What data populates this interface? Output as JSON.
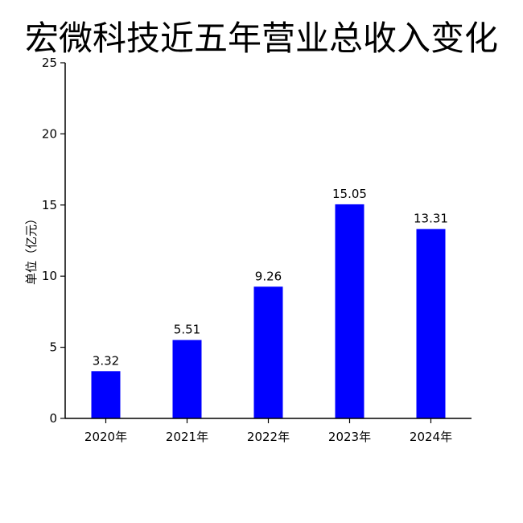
{
  "chart_data": {
    "type": "bar",
    "title": "宏微科技近五年营业总收入变化",
    "xlabel": "",
    "ylabel": "单位（亿元）",
    "categories": [
      "2020年",
      "2021年",
      "2022年",
      "2023年",
      "2024年"
    ],
    "values": [
      3.32,
      5.51,
      9.26,
      15.05,
      13.31
    ],
    "data_labels": [
      "3.32",
      "5.51",
      "9.26",
      "15.05",
      "13.31"
    ],
    "ylim": [
      0,
      25
    ],
    "yticks": [
      0,
      5,
      10,
      15,
      20,
      25
    ],
    "bar_color": "#0000ff",
    "grid": false,
    "legend": "none"
  }
}
